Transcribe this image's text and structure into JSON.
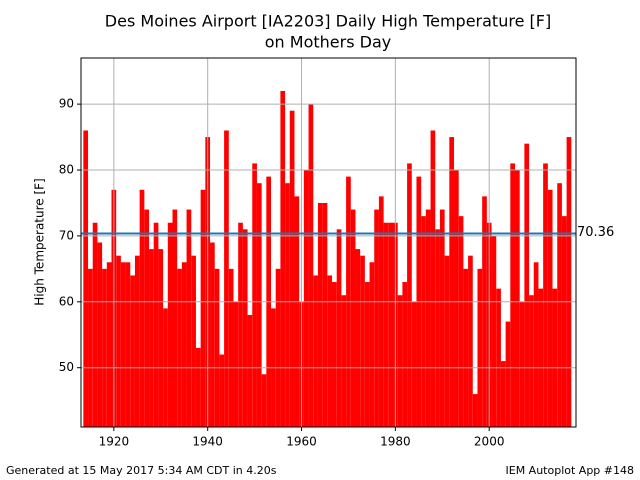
{
  "chart_data": {
    "type": "bar",
    "title": [
      "Des Moines Airport [IA2203] Daily High Temperature [F]",
      "on Mothers Day"
    ],
    "ylabel": "High Temperature [F]",
    "x": [
      1914,
      1915,
      1916,
      1917,
      1918,
      1919,
      1920,
      1921,
      1922,
      1923,
      1924,
      1925,
      1926,
      1927,
      1928,
      1929,
      1930,
      1931,
      1932,
      1933,
      1934,
      1935,
      1936,
      1937,
      1938,
      1939,
      1940,
      1941,
      1942,
      1943,
      1944,
      1945,
      1946,
      1947,
      1948,
      1949,
      1950,
      1951,
      1952,
      1953,
      1954,
      1955,
      1956,
      1957,
      1958,
      1959,
      1960,
      1961,
      1962,
      1963,
      1964,
      1965,
      1966,
      1967,
      1968,
      1969,
      1970,
      1971,
      1972,
      1973,
      1974,
      1975,
      1976,
      1977,
      1978,
      1979,
      1980,
      1981,
      1982,
      1983,
      1984,
      1985,
      1986,
      1987,
      1988,
      1989,
      1990,
      1991,
      1992,
      1993,
      1994,
      1995,
      1996,
      1997,
      1998,
      1999,
      2000,
      2001,
      2002,
      2003,
      2004,
      2005,
      2006,
      2007,
      2008,
      2009,
      2010,
      2011,
      2012,
      2013,
      2014,
      2015,
      2016,
      2017
    ],
    "series": [
      {
        "name": "High Temperature",
        "color": "#ff0000",
        "values": [
          86,
          65,
          72,
          69,
          65,
          66,
          77,
          67,
          66,
          66,
          64,
          67,
          77,
          74,
          68,
          72,
          68,
          59,
          72,
          74,
          65,
          66,
          74,
          67,
          53,
          77,
          85,
          69,
          65,
          52,
          86,
          65,
          60,
          72,
          71,
          58,
          81,
          78,
          49,
          79,
          59,
          65,
          92,
          78,
          89,
          76,
          60,
          80,
          90,
          64,
          75,
          75,
          64,
          63,
          71,
          61,
          79,
          74,
          68,
          67,
          63,
          66,
          74,
          76,
          72,
          72,
          72,
          61,
          63,
          81,
          60,
          79,
          73,
          74,
          86,
          71,
          74,
          67,
          85,
          80,
          73,
          65,
          67,
          46,
          65,
          76,
          72,
          70,
          62,
          51,
          57,
          81,
          80,
          60,
          84,
          61,
          66,
          62,
          81,
          77,
          62,
          78,
          73,
          85
        ]
      }
    ],
    "mean": 70.36,
    "mean_color": "#1f77b4",
    "xlim": [
      1913,
      2018.5
    ],
    "xticks": [
      1920,
      1940,
      1960,
      1980,
      2000
    ],
    "ylim": [
      41,
      97
    ],
    "yticks": [
      50,
      60,
      70,
      80,
      90
    ],
    "grid": true,
    "footer_left": "Generated at 15 May 2017 5:34 AM CDT in 4.20s",
    "footer_right": "IEM Autoplot App #148"
  }
}
